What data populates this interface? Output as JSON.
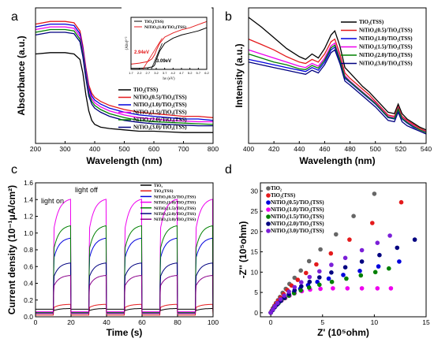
{
  "chart_data": [
    {
      "panel": "a",
      "type": "line",
      "xlabel": "Wavelength (nm)",
      "ylabel": "Absorbance (a.u.)",
      "xlim": [
        200,
        800
      ],
      "xticks": [
        "200",
        "300",
        "400",
        "500",
        "600",
        "700",
        "800"
      ],
      "legend_position": "bottom-right",
      "series": [
        {
          "name": "TiO₂(TSS)",
          "color": "#000000",
          "x": [
            200,
            250,
            300,
            330,
            350,
            360,
            370,
            380,
            390,
            400,
            420,
            450,
            500,
            550,
            600,
            650,
            700,
            750,
            800
          ],
          "y": [
            0.66,
            0.67,
            0.67,
            0.66,
            0.62,
            0.52,
            0.36,
            0.24,
            0.17,
            0.14,
            0.12,
            0.11,
            0.1,
            0.09,
            0.09,
            0.085,
            0.08,
            0.08,
            0.08
          ]
        },
        {
          "name": "NiTiO₃(0.5)/TiO₂(TSS)",
          "color": "#e41a1c",
          "x": [
            200,
            250,
            300,
            330,
            350,
            360,
            370,
            380,
            390,
            400,
            420,
            450,
            500,
            550,
            600,
            650,
            700,
            750,
            800
          ],
          "y": [
            0.88,
            0.9,
            0.9,
            0.89,
            0.83,
            0.72,
            0.56,
            0.43,
            0.37,
            0.34,
            0.31,
            0.28,
            0.25,
            0.23,
            0.22,
            0.21,
            0.2,
            0.2,
            0.19
          ]
        },
        {
          "name": "NiTiO₃(1.0)/TiO₂(TSS)",
          "color": "#0000dd",
          "x": [
            200,
            250,
            300,
            330,
            350,
            360,
            370,
            380,
            390,
            400,
            420,
            450,
            500,
            550,
            600,
            650,
            700,
            750,
            800
          ],
          "y": [
            0.86,
            0.88,
            0.88,
            0.87,
            0.81,
            0.7,
            0.54,
            0.41,
            0.35,
            0.32,
            0.29,
            0.26,
            0.23,
            0.21,
            0.2,
            0.19,
            0.18,
            0.18,
            0.17
          ]
        },
        {
          "name": "NiTiO₃(1.5)/TiO₂(TSS)",
          "color": "#ee00ee",
          "x": [
            200,
            250,
            300,
            330,
            350,
            360,
            370,
            380,
            390,
            400,
            420,
            450,
            500,
            550,
            600,
            650,
            700,
            750,
            800
          ],
          "y": [
            0.84,
            0.86,
            0.86,
            0.85,
            0.79,
            0.68,
            0.52,
            0.39,
            0.33,
            0.3,
            0.27,
            0.24,
            0.21,
            0.19,
            0.18,
            0.17,
            0.165,
            0.16,
            0.16
          ]
        },
        {
          "name": "NiTiO₃(2.0)/TiO₂(TSS)",
          "color": "#008000",
          "x": [
            200,
            250,
            300,
            330,
            350,
            360,
            370,
            380,
            390,
            400,
            420,
            450,
            500,
            550,
            600,
            650,
            700,
            750,
            800
          ],
          "y": [
            0.82,
            0.84,
            0.84,
            0.83,
            0.77,
            0.66,
            0.5,
            0.37,
            0.31,
            0.28,
            0.25,
            0.22,
            0.19,
            0.17,
            0.16,
            0.155,
            0.15,
            0.145,
            0.14
          ]
        },
        {
          "name": "NiTiO₃(3.0)/TiO₂(TSS)",
          "color": "#000080",
          "x": [
            200,
            250,
            300,
            330,
            350,
            360,
            370,
            380,
            390,
            400,
            420,
            450,
            500,
            550,
            600,
            650,
            700,
            750,
            800
          ],
          "y": [
            0.8,
            0.82,
            0.82,
            0.81,
            0.75,
            0.64,
            0.48,
            0.35,
            0.29,
            0.26,
            0.23,
            0.2,
            0.17,
            0.155,
            0.145,
            0.14,
            0.135,
            0.13,
            0.13
          ]
        }
      ],
      "inset": {
        "xlabel": "hν (eV)",
        "ylabel": "(Ahν)¹ᐟ²",
        "xticks": [
          "1.7",
          "2.2",
          "2.7",
          "3.2",
          "3.7",
          "4.2",
          "4.7",
          "5.2",
          "5.7",
          "6.2"
        ],
        "xlim": [
          1.7,
          6.2
        ],
        "legend": [
          "TiO₂(TSS)",
          "NiTiO₃(1.0)/TiO₂(TSS)"
        ],
        "annotations": [
          "2.94eV",
          "3.09eV"
        ],
        "series": [
          {
            "name": "TiO₂(TSS)",
            "color": "#000000",
            "x": [
              1.7,
              2.2,
              2.7,
              3.0,
              3.1,
              3.2,
              3.4,
              3.7,
              4.2,
              4.7,
              5.2,
              5.7,
              6.2
            ],
            "y": [
              0.02,
              0.02,
              0.03,
              0.05,
              0.08,
              0.18,
              0.35,
              0.5,
              0.6,
              0.66,
              0.7,
              0.74,
              0.8
            ]
          },
          {
            "name": "NiTiO₃(1.0)/TiO₂(TSS)",
            "color": "#e41a1c",
            "x": [
              1.7,
              2.2,
              2.7,
              2.94,
              3.1,
              3.2,
              3.4,
              3.7,
              4.2,
              4.7,
              5.2,
              5.7,
              6.2
            ],
            "y": [
              0.1,
              0.12,
              0.15,
              0.2,
              0.28,
              0.36,
              0.5,
              0.62,
              0.7,
              0.76,
              0.8,
              0.86,
              0.92
            ]
          }
        ]
      }
    },
    {
      "panel": "b",
      "type": "line",
      "xlabel": "Wavelength (nm)",
      "ylabel": "Intensity (a.u.)",
      "xlim": [
        400,
        540
      ],
      "xticks": [
        "400",
        "420",
        "440",
        "460",
        "480",
        "500",
        "520",
        "540"
      ],
      "legend_position": "top-right",
      "x": [
        400,
        410,
        420,
        430,
        440,
        445,
        450,
        455,
        460,
        465,
        468,
        472,
        476,
        480,
        485,
        490,
        495,
        500,
        505,
        510,
        515,
        518,
        521,
        525,
        530,
        535,
        540
      ],
      "series": [
        {
          "name": "TiO₂(TSS)",
          "color": "#000000",
          "y": [
            0.93,
            0.86,
            0.78,
            0.7,
            0.64,
            0.62,
            0.66,
            0.63,
            0.7,
            0.8,
            0.83,
            0.72,
            0.56,
            0.52,
            0.47,
            0.42,
            0.38,
            0.33,
            0.28,
            0.23,
            0.22,
            0.29,
            0.22,
            0.18,
            0.15,
            0.12,
            0.1
          ]
        },
        {
          "name": "NiTiO₃(0.5)/TiO₂(TSS)",
          "color": "#e41a1c",
          "y": [
            0.77,
            0.73,
            0.69,
            0.64,
            0.6,
            0.59,
            0.62,
            0.6,
            0.66,
            0.75,
            0.77,
            0.66,
            0.52,
            0.48,
            0.44,
            0.4,
            0.36,
            0.31,
            0.26,
            0.21,
            0.2,
            0.27,
            0.2,
            0.17,
            0.14,
            0.11,
            0.09
          ]
        },
        {
          "name": "NiTiO₃(1.0)/TiO₂(TSS)",
          "color": "#0000dd",
          "y": [
            0.62,
            0.6,
            0.58,
            0.56,
            0.54,
            0.53,
            0.56,
            0.54,
            0.6,
            0.69,
            0.71,
            0.61,
            0.48,
            0.45,
            0.41,
            0.37,
            0.33,
            0.29,
            0.24,
            0.19,
            0.18,
            0.25,
            0.18,
            0.15,
            0.12,
            0.1,
            0.08
          ]
        },
        {
          "name": "NiTiO₃(1.5)/TiO₂(TSS)",
          "color": "#ee00ee",
          "y": [
            0.69,
            0.66,
            0.63,
            0.6,
            0.57,
            0.56,
            0.59,
            0.57,
            0.63,
            0.72,
            0.74,
            0.63,
            0.5,
            0.46,
            0.42,
            0.38,
            0.34,
            0.3,
            0.25,
            0.2,
            0.19,
            0.26,
            0.19,
            0.16,
            0.13,
            0.1,
            0.085
          ]
        },
        {
          "name": "NiTiO₃(2.0)/TiO₂(TSS)",
          "color": "#008000",
          "y": [
            0.66,
            0.63,
            0.6,
            0.58,
            0.55,
            0.545,
            0.575,
            0.555,
            0.615,
            0.705,
            0.725,
            0.62,
            0.49,
            0.455,
            0.415,
            0.375,
            0.335,
            0.295,
            0.245,
            0.195,
            0.185,
            0.255,
            0.185,
            0.155,
            0.125,
            0.1,
            0.08
          ]
        },
        {
          "name": "NiTiO₃(3.0)/TiO₂(TSS)",
          "color": "#000080",
          "y": [
            0.6,
            0.58,
            0.56,
            0.54,
            0.52,
            0.51,
            0.54,
            0.52,
            0.58,
            0.67,
            0.69,
            0.59,
            0.46,
            0.43,
            0.39,
            0.35,
            0.31,
            0.27,
            0.22,
            0.17,
            0.16,
            0.23,
            0.16,
            0.13,
            0.11,
            0.09,
            0.07
          ]
        }
      ]
    },
    {
      "panel": "c",
      "type": "line",
      "xlabel": "Time (s)",
      "ylabel": "Current density (10⁻¹μA/cm²)",
      "xlim": [
        0,
        100
      ],
      "ylim": [
        0,
        1.6
      ],
      "xticks": [
        "0",
        "20",
        "40",
        "60",
        "80",
        "100"
      ],
      "yticks": [
        "0.0",
        "0.2",
        "0.4",
        "0.6",
        "0.8",
        "1.0",
        "1.2",
        "1.4",
        "1.6"
      ],
      "annotations": [
        "light on",
        "light off"
      ],
      "legend_position": "top-right",
      "light_on_intervals": [
        [
          10,
          20
        ],
        [
          30,
          40
        ],
        [
          50,
          60
        ],
        [
          70,
          80
        ],
        [
          90,
          100
        ]
      ],
      "series": [
        {
          "name": "TiO₂",
          "color": "#000000",
          "on": 0.1,
          "off": 0.09
        },
        {
          "name": "TiO₂(TSS)",
          "color": "#e41a1c",
          "on": 0.15,
          "off": 0.02
        },
        {
          "name": "NiTiO₃(0.5)/TiO₂(TSS)",
          "color": "#0000dd",
          "on": 0.95,
          "off": 0.05
        },
        {
          "name": "NiTiO₃(1.0)/TiO₂(TSS)",
          "color": "#ee00ee",
          "on": 1.42,
          "off": 0.06
        },
        {
          "name": "NiTiO₃(1.5)/TiO₂(TSS)",
          "color": "#008000",
          "on": 1.1,
          "off": 0.05
        },
        {
          "name": "NiTiO₃(2.0)/TiO₂(TSS)",
          "color": "#000080",
          "on": 0.65,
          "off": 0.04
        },
        {
          "name": "NiTiO₃(3.0)/TiO₂(TSS)",
          "color": "#8b008b",
          "on": 0.5,
          "off": 0.04
        }
      ]
    },
    {
      "panel": "d",
      "type": "scatter",
      "xlabel": "Z' (10⁵ohm)",
      "ylabel": "-Z'' (10⁵ohm)",
      "xlim": [
        -1,
        15
      ],
      "ylim": [
        -1,
        32
      ],
      "xticks": [
        "0",
        "5",
        "10",
        "15"
      ],
      "yticks": [
        "0",
        "5",
        "10",
        "15",
        "20",
        "25",
        "30"
      ],
      "legend_position": "top-left",
      "series": [
        {
          "name": "TiO₂",
          "color": "#666666",
          "x": [
            0,
            0.1,
            0.2,
            0.35,
            0.5,
            0.7,
            0.9,
            1.15,
            1.45,
            1.8,
            2.3,
            2.9,
            3.7,
            4.8,
            6.3,
            8.0,
            10.0
          ],
          "y": [
            0,
            0.5,
            1.1,
            1.7,
            2.4,
            3.1,
            3.9,
            4.9,
            5.9,
            7.1,
            8.6,
            10.4,
            12.7,
            15.6,
            19.3,
            23.8,
            29.3
          ]
        },
        {
          "name": "TiO₂(TSS)",
          "color": "#e41a1c",
          "x": [
            0,
            0.1,
            0.2,
            0.35,
            0.5,
            0.7,
            0.95,
            1.25,
            1.6,
            2.0,
            2.6,
            3.4,
            4.4,
            5.8,
            7.6,
            9.8,
            12.6
          ],
          "y": [
            0,
            0.5,
            1.0,
            1.6,
            2.2,
            2.9,
            3.7,
            4.6,
            5.6,
            6.7,
            8.1,
            9.8,
            11.9,
            14.6,
            18.0,
            22.1,
            27.2
          ]
        },
        {
          "name": "NiTiO₃(0.5)/TiO₂(TSS)",
          "color": "#0000dd",
          "x": [
            0,
            0.15,
            0.3,
            0.5,
            0.75,
            1.0,
            1.35,
            1.75,
            2.25,
            2.85,
            3.6,
            4.5,
            5.6,
            7.0,
            8.6,
            10.4,
            12.4
          ],
          "y": [
            0,
            0.6,
            1.2,
            1.8,
            2.4,
            3.0,
            3.7,
            4.4,
            5.1,
            5.9,
            6.8,
            7.6,
            8.4,
            9.3,
            10.3,
            11.4,
            12.6
          ]
        },
        {
          "name": "NiTiO₃(1.0)/TiO₂(TSS)",
          "color": "#ee00ee",
          "x": [
            0,
            0.15,
            0.3,
            0.5,
            0.75,
            1.05,
            1.4,
            1.8,
            2.3,
            3.0,
            3.8,
            4.8,
            6.0,
            7.4,
            8.8,
            10.3,
            11.6
          ],
          "y": [
            0,
            0.6,
            1.2,
            1.8,
            2.4,
            3.0,
            3.6,
            4.2,
            4.8,
            5.3,
            5.7,
            5.9,
            6.0,
            6.0,
            6.0,
            6.0,
            6.0
          ]
        },
        {
          "name": "NiTiO₃(1.5)/TiO₂(TSS)",
          "color": "#008000",
          "x": [
            0,
            0.15,
            0.3,
            0.5,
            0.75,
            1.0,
            1.35,
            1.75,
            2.25,
            2.9,
            3.7,
            4.7,
            5.9,
            7.3,
            8.7,
            10.1,
            11.4
          ],
          "y": [
            0,
            0.6,
            1.2,
            1.8,
            2.4,
            3.0,
            3.6,
            4.2,
            4.8,
            5.5,
            6.2,
            6.9,
            7.6,
            8.4,
            9.2,
            10.0,
            10.9
          ]
        },
        {
          "name": "NiTiO₃(2.0)/TiO₂(TSS)",
          "color": "#000080",
          "x": [
            0,
            0.2,
            0.4,
            0.65,
            0.95,
            1.3,
            1.75,
            2.3,
            2.95,
            3.75,
            4.7,
            5.85,
            7.2,
            8.8,
            10.5,
            12.2,
            13.9
          ],
          "y": [
            0,
            0.7,
            1.4,
            2.1,
            2.9,
            3.7,
            4.6,
            5.5,
            6.5,
            7.6,
            8.7,
            9.9,
            11.2,
            12.6,
            14.2,
            16.0,
            18.0
          ]
        },
        {
          "name": "NiTiO₃(3.0)/TiO₂(TSS)",
          "color": "#7b1fd8",
          "x": [
            0,
            0.2,
            0.4,
            0.65,
            0.95,
            1.3,
            1.75,
            2.3,
            2.95,
            3.75,
            4.7,
            5.85,
            7.2,
            8.8,
            10.3,
            11.5
          ],
          "y": [
            0,
            0.8,
            1.6,
            2.4,
            3.3,
            4.2,
            5.2,
            6.3,
            7.5,
            8.8,
            10.2,
            11.8,
            13.5,
            15.4,
            17.2,
            19.0
          ]
        }
      ]
    }
  ]
}
